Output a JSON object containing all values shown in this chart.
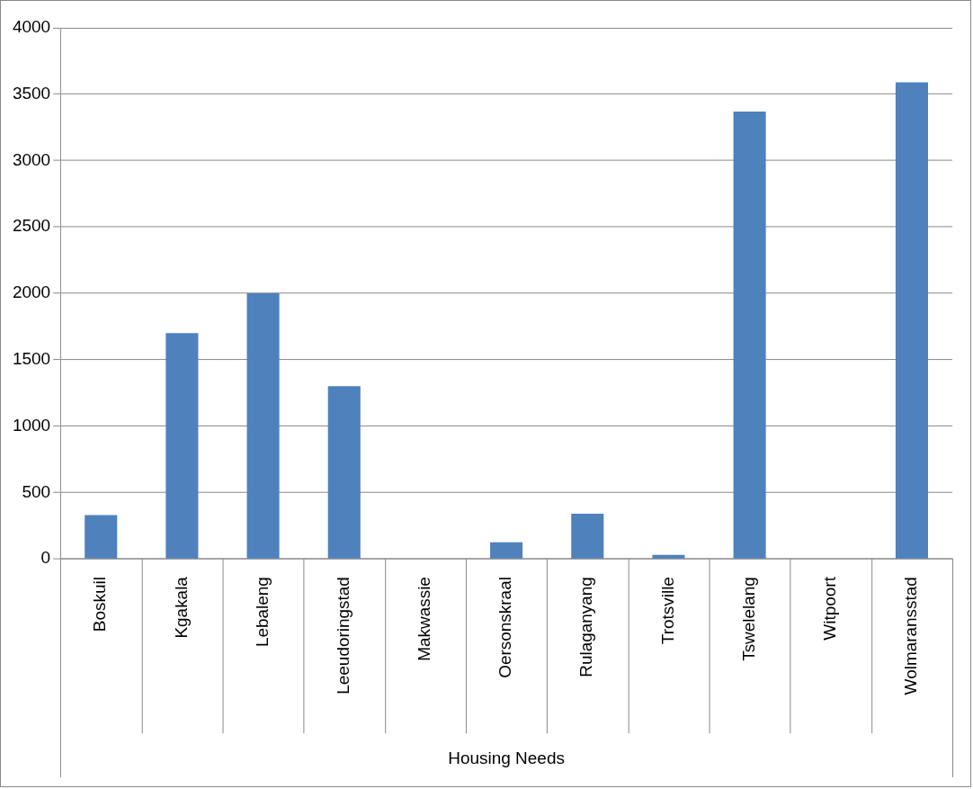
{
  "chart_data": {
    "type": "bar",
    "xlabel": "Housing Needs",
    "categories": [
      "Boskuil",
      "Kgakala",
      "Lebaleng",
      "Leeudoringstad",
      "Makwassie",
      "Oersonskraal",
      "Rulaganyang",
      "Trotsville",
      "Tswelelang",
      "Witpoort",
      "Wolmaransstad"
    ],
    "values": [
      330,
      1700,
      2000,
      1300,
      0,
      125,
      340,
      30,
      3370,
      0,
      3590
    ],
    "color": "#4f81bd",
    "ylim": [
      0,
      4000
    ],
    "yticks": [
      0,
      500,
      1000,
      1500,
      2000,
      2500,
      3000,
      3500,
      4000
    ],
    "grid": "y",
    "legend": false
  }
}
